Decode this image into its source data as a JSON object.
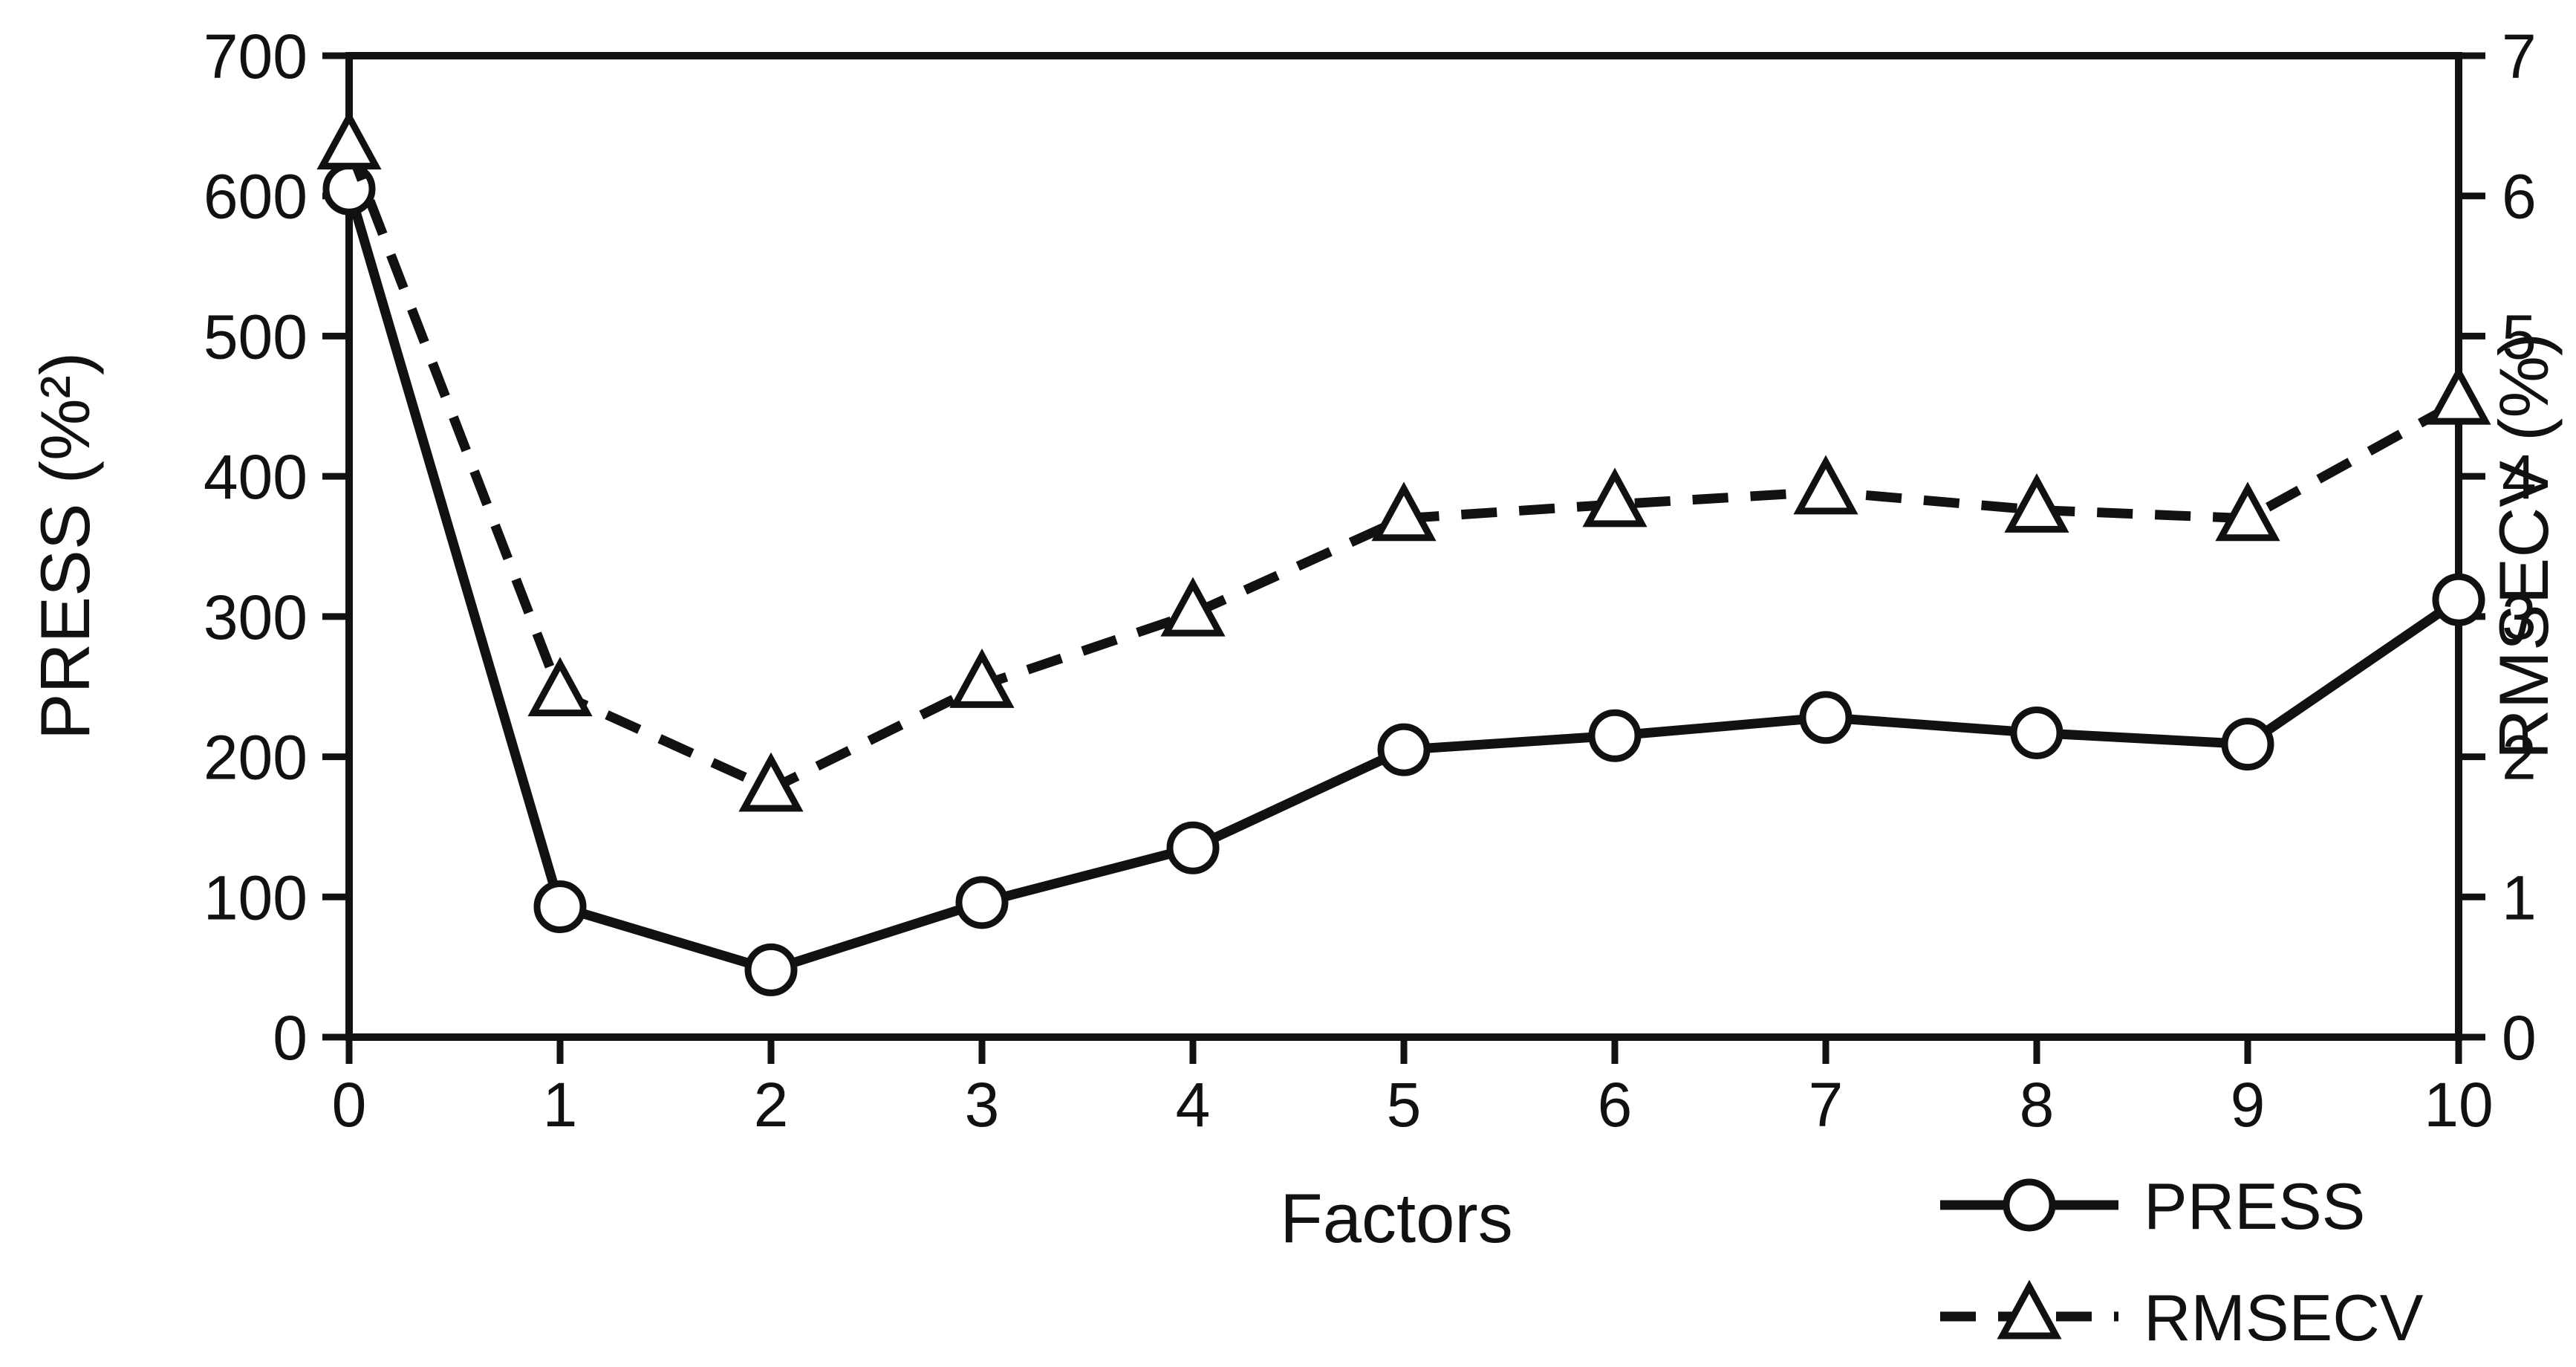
{
  "colors": {
    "background": "#ffffff",
    "foreground": "#111111"
  },
  "chart_data": {
    "type": "line",
    "title": "",
    "x": [
      0,
      1,
      2,
      3,
      4,
      5,
      6,
      7,
      8,
      9,
      10
    ],
    "x_tick_labels": [
      "0",
      "1",
      "2",
      "3",
      "4",
      "5",
      "6",
      "7",
      "8",
      "9",
      "10"
    ],
    "xlabel": "Factors",
    "grid": false,
    "legend_position": "bottom-right",
    "left_axis": {
      "label": "PRESS (%²)",
      "min": 0,
      "max": 700,
      "ticks": [
        0,
        100,
        200,
        300,
        400,
        500,
        600,
        700
      ]
    },
    "right_axis": {
      "label": "RMSECV (%)",
      "min": 0,
      "max": 7,
      "ticks": [
        0,
        1,
        2,
        3,
        4,
        5,
        6,
        7
      ]
    },
    "series": [
      {
        "name": "PRESS",
        "axis": "left",
        "line_style": "solid",
        "marker": "circle",
        "color": "#111111",
        "values": [
          605,
          93,
          48,
          96,
          135,
          205,
          215,
          228,
          217,
          209,
          312
        ]
      },
      {
        "name": "RMSECV",
        "axis": "right",
        "line_style": "dashed",
        "marker": "triangle",
        "color": "#111111",
        "values": [
          6.35,
          2.45,
          1.77,
          2.51,
          3.02,
          3.7,
          3.8,
          3.89,
          3.76,
          3.7,
          4.53
        ]
      }
    ]
  }
}
